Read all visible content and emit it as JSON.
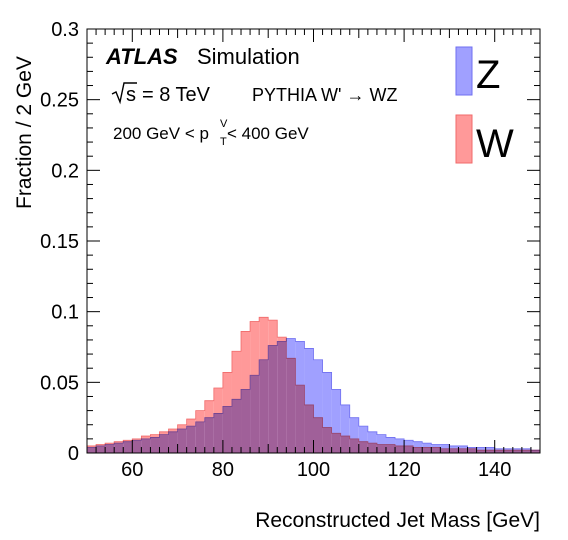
{
  "chart_data": {
    "type": "histogram",
    "xlabel": "Reconstructed Jet Mass [GeV]",
    "ylabel": "Fraction / 2 GeV",
    "xlim": [
      50,
      150
    ],
    "ylim": [
      0,
      0.3
    ],
    "bin_width": 2,
    "x_ticks": [
      60,
      80,
      100,
      120,
      140
    ],
    "y_ticks": [
      0,
      0.05,
      0.1,
      0.15,
      0.2,
      0.25,
      0.3
    ],
    "y_tick_labels": [
      "0",
      "0.05",
      "0.1",
      "0.15",
      "0.2",
      "0.25",
      "0.3"
    ],
    "annotations": {
      "experiment": "ATLAS",
      "status": "Simulation",
      "energy_prefix": "s",
      "energy_value": "= 8 TeV",
      "generator": "PYTHIA W' → WZ",
      "pt_left": "200 GeV < p",
      "pt_sup": "V",
      "pt_sub": "T",
      "pt_right": " < 400 GeV"
    },
    "legend_position": "top-right",
    "series": [
      {
        "name": "Z",
        "color": "#a0a0ff",
        "edge": "#6f6ff0",
        "bin_edges_start": 50,
        "values": [
          0.004,
          0.005,
          0.006,
          0.007,
          0.008,
          0.009,
          0.01,
          0.011,
          0.013,
          0.015,
          0.017,
          0.019,
          0.022,
          0.025,
          0.028,
          0.033,
          0.038,
          0.045,
          0.055,
          0.066,
          0.076,
          0.079,
          0.081,
          0.079,
          0.074,
          0.066,
          0.057,
          0.045,
          0.034,
          0.025,
          0.019,
          0.015,
          0.013,
          0.011,
          0.01,
          0.009,
          0.008,
          0.007,
          0.006,
          0.006,
          0.005,
          0.005,
          0.004,
          0.004,
          0.004,
          0.003,
          0.003,
          0.003,
          0.003,
          0.002
        ]
      },
      {
        "name": "W",
        "color": "#ff9999",
        "edge": "#f06a6a",
        "bin_edges_start": 50,
        "values": [
          0.005,
          0.006,
          0.007,
          0.008,
          0.009,
          0.01,
          0.012,
          0.013,
          0.015,
          0.017,
          0.02,
          0.024,
          0.03,
          0.037,
          0.046,
          0.057,
          0.072,
          0.086,
          0.093,
          0.096,
          0.094,
          0.082,
          0.067,
          0.048,
          0.034,
          0.025,
          0.018,
          0.014,
          0.012,
          0.01,
          0.008,
          0.007,
          0.006,
          0.006,
          0.005,
          0.005,
          0.004,
          0.004,
          0.004,
          0.003,
          0.003,
          0.003,
          0.003,
          0.002,
          0.002,
          0.002,
          0.002,
          0.002,
          0.002,
          0.002
        ]
      }
    ]
  }
}
